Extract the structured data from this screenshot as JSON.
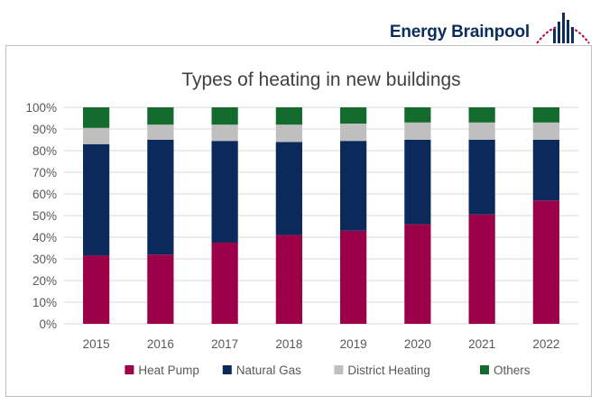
{
  "brand": {
    "name": "Energy Brainpool",
    "logo_icon": "brainpool-arc-logo",
    "logo_colors": [
      "#0b2d5b",
      "#c0003c"
    ]
  },
  "chart_data": {
    "type": "bar",
    "stacked": true,
    "percent": true,
    "title": "Types of heating in new buildings",
    "xlabel": "",
    "ylabel": "",
    "categories": [
      "2015",
      "2016",
      "2017",
      "2018",
      "2019",
      "2020",
      "2021",
      "2022"
    ],
    "ylim": [
      0,
      100
    ],
    "yticks": [
      "0%",
      "10%",
      "20%",
      "30%",
      "40%",
      "50%",
      "60%",
      "70%",
      "80%",
      "90%",
      "100%"
    ],
    "grid": true,
    "legend_position": "bottom",
    "series": [
      {
        "name": "Heat Pump",
        "color": "#9b0048",
        "values": [
          31.5,
          32,
          37.5,
          41,
          43,
          46,
          50.5,
          57
        ]
      },
      {
        "name": "Natural Gas",
        "color": "#0b2a5b",
        "values": [
          51.5,
          53,
          47,
          43,
          41.5,
          39,
          34.5,
          28
        ]
      },
      {
        "name": "District Heating",
        "color": "#bfbfbf",
        "values": [
          7.5,
          7,
          7.5,
          8,
          8,
          8,
          8,
          8
        ]
      },
      {
        "name": "Others",
        "color": "#146b2e",
        "values": [
          9.5,
          8,
          8,
          8,
          7.5,
          7,
          7,
          7
        ]
      }
    ]
  }
}
